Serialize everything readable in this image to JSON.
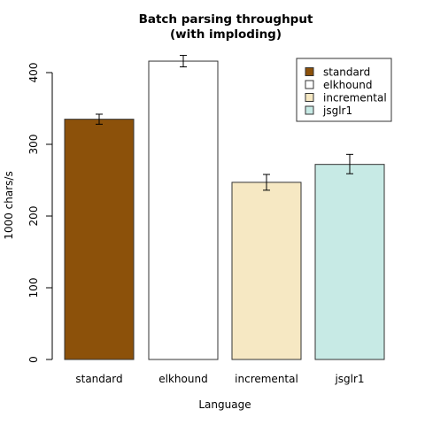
{
  "chart_data": {
    "type": "bar",
    "title_lines": [
      "Batch parsing throughput",
      "(with imploding)"
    ],
    "xlabel": "Language",
    "ylabel": "1000 chars/s",
    "categories": [
      "standard",
      "elkhound",
      "incremental",
      "jsglr1"
    ],
    "values": [
      335,
      416,
      247,
      272
    ],
    "error": [
      {
        "low": 328,
        "high": 342
      },
      {
        "low": 408,
        "high": 424
      },
      {
        "low": 236,
        "high": 258
      },
      {
        "low": 259,
        "high": 286
      }
    ],
    "colors": [
      "#8c510a",
      "#ffffff",
      "#f6e8c3",
      "#c7eae5"
    ],
    "yticks": [
      0,
      100,
      200,
      300,
      400
    ],
    "ylim": [
      0,
      420
    ],
    "legend": {
      "placement": "top-right",
      "entries": [
        "standard",
        "elkhound",
        "incremental",
        "jsglr1"
      ]
    },
    "grid": false
  }
}
